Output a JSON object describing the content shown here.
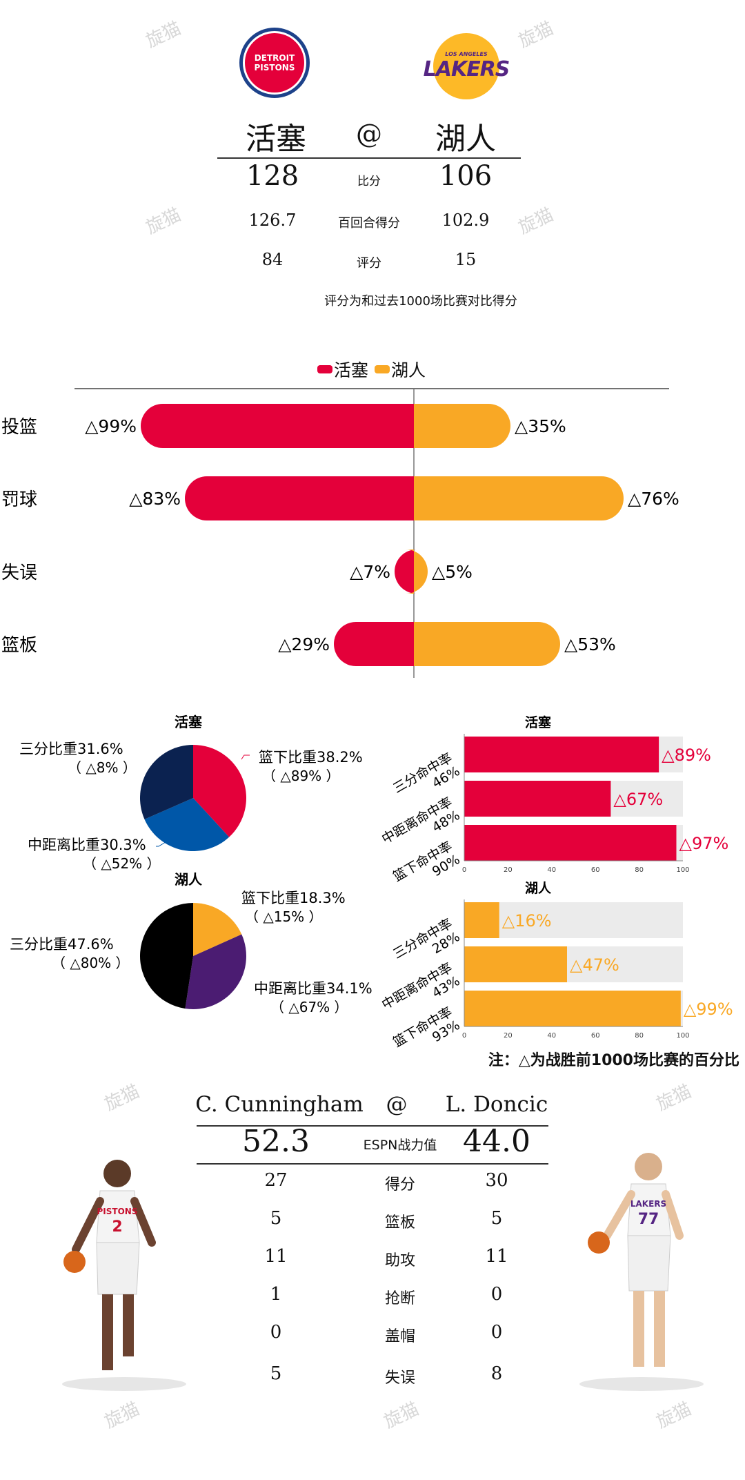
{
  "colors": {
    "pistons": "#E4003A",
    "lakers": "#F9A825",
    "lakers_purple": "#4B1C72",
    "pistons_blue": "#0057A8",
    "navy": "#0B2250",
    "light": "#EBEBEB"
  },
  "watermark": "旋猫",
  "header": {
    "home_logo": {
      "line1": "DETROIT",
      "line2": "PISTONS"
    },
    "away_logo": {
      "line1": "LOS ANGELES",
      "line2": "LAKERS"
    },
    "team_home": "活塞",
    "at": "@",
    "team_away": "湖人",
    "rows": [
      {
        "label": "比分",
        "home": "128",
        "away": "106"
      },
      {
        "label": "百回合得分",
        "home": "126.7",
        "away": "102.9"
      },
      {
        "label": "评分",
        "home": "84",
        "away": "15"
      }
    ],
    "note": "评分为和过去1000场比赛对比得分"
  },
  "chart_data": [
    {
      "type": "bar",
      "legend": [
        "活塞",
        "湖人"
      ],
      "categories": [
        "投篮",
        "罚球",
        "失误",
        "篮板"
      ],
      "series": [
        {
          "name": "活塞",
          "values": [
            99,
            83,
            7,
            29
          ]
        },
        {
          "name": "湖人",
          "values": [
            35,
            76,
            5,
            53
          ]
        }
      ],
      "label_prefix": "△",
      "unit": "%"
    },
    {
      "type": "pie",
      "title": "活塞",
      "slices": [
        {
          "label": "篮下比重38.2%",
          "sub": "（ △89% ）",
          "value": 38.2,
          "color": "#E4003A"
        },
        {
          "label": "中距离比重30.3%",
          "sub": "（ △52% ）",
          "value": 30.3,
          "color": "#0057A8"
        },
        {
          "label": "三分比重31.6%",
          "sub": "（ △8% ）",
          "value": 31.6,
          "color": "#0B2250"
        }
      ]
    },
    {
      "type": "pie",
      "title": "湖人",
      "slices": [
        {
          "label": "篮下比重18.3%",
          "sub": "（ △15% ）",
          "value": 18.3,
          "color": "#F9A825"
        },
        {
          "label": "中距离比重34.1%",
          "sub": "（ △67% ）",
          "value": 34.1,
          "color": "#4B1C72"
        },
        {
          "label": "三分比重47.6%",
          "sub": "（ △80% ）",
          "value": 47.6,
          "color": "#000000"
        }
      ]
    },
    {
      "type": "bar",
      "title": "活塞",
      "categories": [
        "三分命中率\n46%",
        "中距离命中率\n48%",
        "篮下命中率\n90%"
      ],
      "values": [
        89,
        67,
        97
      ],
      "labels": [
        "△89%",
        "△67%",
        "△97%"
      ],
      "ticks": [
        "0",
        "20",
        "40",
        "60",
        "80",
        "100"
      ],
      "xlim": [
        0,
        100
      ],
      "color": "#E4003A"
    },
    {
      "type": "bar",
      "title": "湖人",
      "categories": [
        "三分命中率\n28%",
        "中距离命中率\n43%",
        "篮下命中率\n93%"
      ],
      "values": [
        16,
        47,
        99
      ],
      "labels": [
        "△16%",
        "△47%",
        "△99%"
      ],
      "ticks": [
        "0",
        "20",
        "40",
        "60",
        "80",
        "100"
      ],
      "xlim": [
        0,
        100
      ],
      "color": "#F9A825"
    }
  ],
  "footnote": "注：△为战胜前1000场比赛的百分比",
  "players": {
    "home_name": "C. Cunningham",
    "at": "@",
    "away_name": "L. Doncic",
    "rating_label": "ESPN战力值",
    "home_rating": "52.3",
    "away_rating": "44.0",
    "home_jersey": "2",
    "home_jersey_team": "PISTONS",
    "away_jersey": "77",
    "away_jersey_team": "LAKERS",
    "stats": [
      {
        "label": "得分",
        "home": "27",
        "away": "30"
      },
      {
        "label": "篮板",
        "home": "5",
        "away": "5"
      },
      {
        "label": "助攻",
        "home": "11",
        "away": "11"
      },
      {
        "label": "抢断",
        "home": "1",
        "away": "0"
      },
      {
        "label": "盖帽",
        "home": "0",
        "away": "0"
      },
      {
        "label": "失误",
        "home": "5",
        "away": "8"
      }
    ]
  }
}
